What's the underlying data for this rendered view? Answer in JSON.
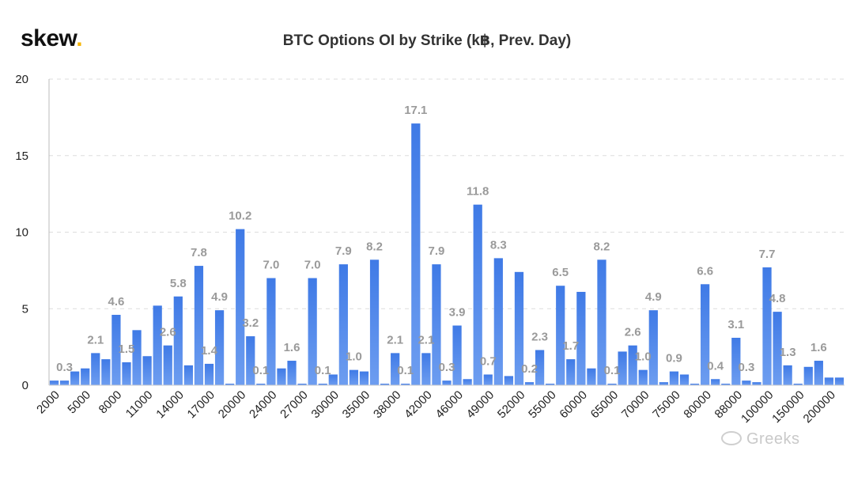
{
  "brand": {
    "logo_text": "skew",
    "logo_dot": ".",
    "dot_color": "#f5b400"
  },
  "watermark": {
    "text": "Greeks",
    "icon": "wechat-icon"
  },
  "chart_data": {
    "type": "bar",
    "title": "BTC Options OI by Strike (k฿, Prev. Day)",
    "ylim": [
      0,
      20
    ],
    "yticks": [
      0,
      5,
      10,
      15,
      20
    ],
    "grid": true,
    "bar_color": "#4a86e8",
    "x_tick_labels": [
      "2000",
      "5000",
      "8000",
      "11000",
      "14000",
      "17000",
      "20000",
      "24000",
      "27000",
      "30000",
      "35000",
      "38000",
      "42000",
      "46000",
      "49000",
      "52000",
      "55000",
      "60000",
      "65000",
      "70000",
      "75000",
      "80000",
      "88000",
      "100000",
      "150000",
      "200000"
    ],
    "values": [
      0.3,
      0.3,
      0.9,
      1.1,
      2.1,
      1.7,
      4.6,
      1.5,
      3.6,
      1.9,
      5.2,
      2.6,
      5.8,
      1.3,
      7.8,
      1.4,
      4.9,
      0.1,
      10.2,
      3.2,
      0.1,
      7.0,
      1.1,
      1.6,
      0.1,
      7.0,
      0.1,
      0.7,
      7.9,
      1.0,
      0.9,
      8.2,
      0.1,
      2.1,
      0.1,
      17.1,
      2.1,
      7.9,
      0.3,
      3.9,
      0.4,
      11.8,
      0.7,
      8.3,
      0.6,
      7.4,
      0.2,
      2.3,
      0.1,
      6.5,
      1.7,
      6.1,
      1.1,
      8.2,
      0.1,
      2.2,
      2.6,
      1.0,
      4.9,
      0.2,
      0.9,
      0.7,
      0.1,
      6.6,
      0.4,
      0.1,
      3.1,
      0.3,
      0.2,
      7.7,
      4.8,
      1.3,
      0.1,
      1.2,
      1.6,
      0.5,
      0.5
    ],
    "data_labels": [
      {
        "index": 1,
        "text": "0.3"
      },
      {
        "index": 4,
        "text": "2.1"
      },
      {
        "index": 6,
        "text": "4.6"
      },
      {
        "index": 7,
        "text": "1.5"
      },
      {
        "index": 11,
        "text": "2.6"
      },
      {
        "index": 12,
        "text": "5.8"
      },
      {
        "index": 14,
        "text": "7.8"
      },
      {
        "index": 15,
        "text": "1.4"
      },
      {
        "index": 16,
        "text": "4.9"
      },
      {
        "index": 18,
        "text": "10.2"
      },
      {
        "index": 19,
        "text": "3.2"
      },
      {
        "index": 20,
        "text": "0.1"
      },
      {
        "index": 21,
        "text": "7.0"
      },
      {
        "index": 23,
        "text": "1.6"
      },
      {
        "index": 25,
        "text": "7.0"
      },
      {
        "index": 26,
        "text": "0.1"
      },
      {
        "index": 28,
        "text": "7.9"
      },
      {
        "index": 29,
        "text": "1.0"
      },
      {
        "index": 31,
        "text": "8.2"
      },
      {
        "index": 33,
        "text": "2.1"
      },
      {
        "index": 34,
        "text": "0.1"
      },
      {
        "index": 35,
        "text": "17.1"
      },
      {
        "index": 36,
        "text": "2.1"
      },
      {
        "index": 37,
        "text": "7.9"
      },
      {
        "index": 38,
        "text": "0.3"
      },
      {
        "index": 39,
        "text": "3.9"
      },
      {
        "index": 41,
        "text": "11.8"
      },
      {
        "index": 42,
        "text": "0.7"
      },
      {
        "index": 43,
        "text": "8.3"
      },
      {
        "index": 46,
        "text": "0.2"
      },
      {
        "index": 47,
        "text": "2.3"
      },
      {
        "index": 49,
        "text": "6.5"
      },
      {
        "index": 50,
        "text": "1.7"
      },
      {
        "index": 53,
        "text": "8.2"
      },
      {
        "index": 54,
        "text": "0.1"
      },
      {
        "index": 56,
        "text": "2.6"
      },
      {
        "index": 57,
        "text": "1.0"
      },
      {
        "index": 58,
        "text": "4.9"
      },
      {
        "index": 60,
        "text": "0.9"
      },
      {
        "index": 63,
        "text": "6.6"
      },
      {
        "index": 64,
        "text": "0.4"
      },
      {
        "index": 66,
        "text": "3.1"
      },
      {
        "index": 67,
        "text": "0.3"
      },
      {
        "index": 69,
        "text": "7.7"
      },
      {
        "index": 70,
        "text": "4.8"
      },
      {
        "index": 71,
        "text": "1.3"
      },
      {
        "index": 74,
        "text": "1.6"
      }
    ]
  }
}
